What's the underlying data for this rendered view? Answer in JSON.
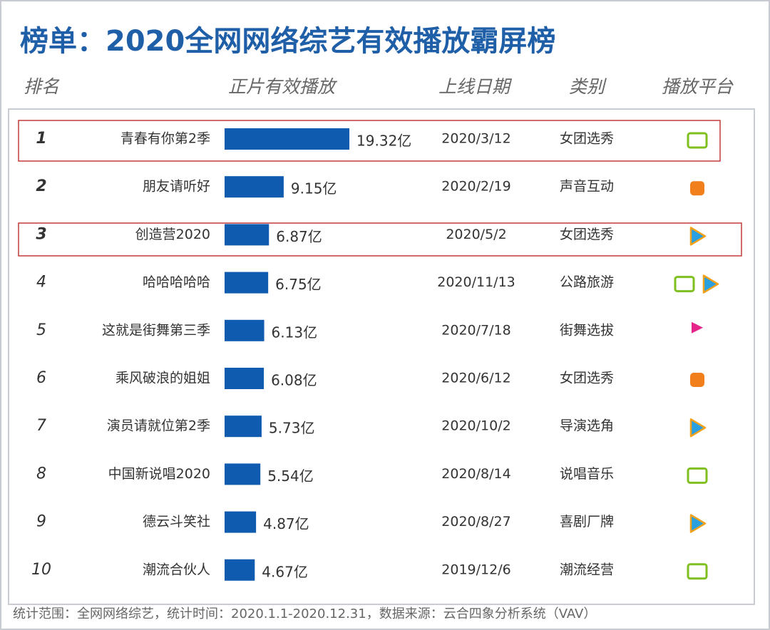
{
  "chart_data": {
    "type": "bar",
    "title": "榜单：2020全网网络综艺有效播放霸屏榜",
    "columns": [
      "排名",
      "正片有效播放",
      "上线日期",
      "类别",
      "播放平台"
    ],
    "ranks": [
      "1",
      "2",
      "3",
      "4",
      "5",
      "6",
      "7",
      "8",
      "9",
      "10"
    ],
    "categories": [
      "青春有你第2季",
      "朋友请听好",
      "创造营2020",
      "哈哈哈哈哈",
      "这就是街舞第三季",
      "乘风破浪的姐姐",
      "演员请就位第2季",
      "中国新说唱2020",
      "德云斗笑社",
      "潮流合伙人"
    ],
    "values": [
      19.32,
      9.15,
      6.87,
      6.75,
      6.13,
      6.08,
      5.73,
      5.54,
      4.87,
      4.67
    ],
    "value_labels": [
      "19.32亿",
      "9.15亿",
      "6.87亿",
      "6.75亿",
      "6.13亿",
      "6.08亿",
      "5.73亿",
      "5.54亿",
      "4.87亿",
      "4.67亿"
    ],
    "color": "#0f5bb0",
    "dates": [
      "2020/3/12",
      "2020/2/19",
      "2020/5/2",
      "2020/11/13",
      "2020/7/18",
      "2020/6/12",
      "2020/10/2",
      "2020/8/14",
      "2020/8/27",
      "2019/12/6"
    ],
    "genres": [
      "女团选秀",
      "声音互动",
      "女团选秀",
      "公路旅游",
      "街舞选拔",
      "女团选秀",
      "导演选角",
      "说唱音乐",
      "喜剧厂牌",
      "潮流经营"
    ],
    "footnote": "统计范围：全网网络综艺，统计时间：2020.1.1-2020.12.31，数据来源：云合四象分析系统（VAV）"
  }
}
